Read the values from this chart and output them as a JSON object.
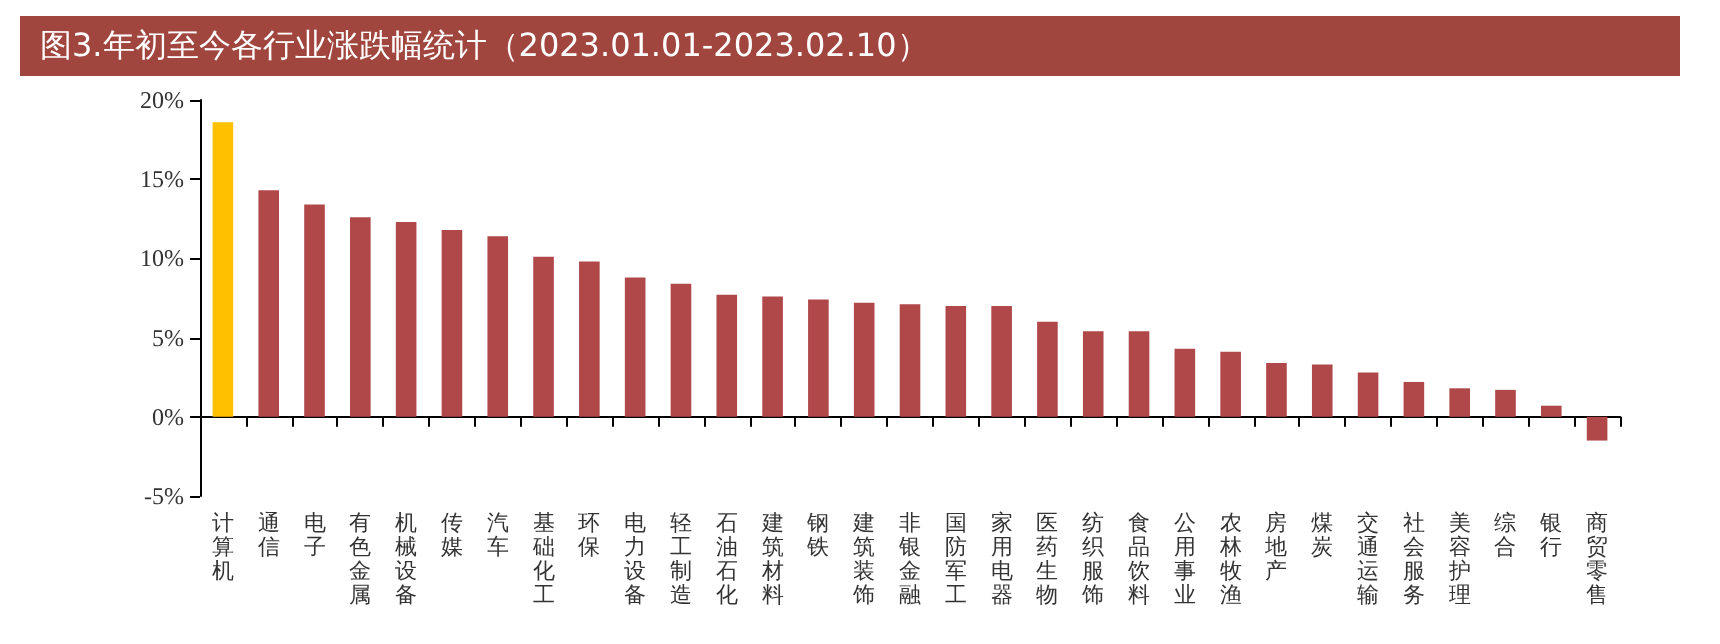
{
  "chart_data": {
    "type": "bar",
    "title": "图3.年初至今各行业涨跌幅统计（2023.01.01-2023.02.10）",
    "categories": [
      "计算机",
      "通信",
      "电子",
      "有色金属",
      "机械设备",
      "传媒",
      "汽车",
      "基础化工",
      "环保",
      "电力设备",
      "轻工制造",
      "石油石化",
      "建筑材料",
      "钢铁",
      "建筑装饰",
      "非银金融",
      "国防军工",
      "家用电器",
      "医药生物",
      "纺织服饰",
      "食品饮料",
      "公用事业",
      "农林牧渔",
      "房地产",
      "煤炭",
      "交通运输",
      "社会服务",
      "美容护理",
      "综合",
      "银行",
      "商贸零售"
    ],
    "values": [
      18.6,
      14.3,
      13.4,
      12.6,
      12.3,
      11.8,
      11.4,
      10.1,
      9.8,
      8.8,
      8.4,
      7.7,
      7.6,
      7.4,
      7.2,
      7.1,
      7.0,
      7.0,
      6.0,
      5.4,
      5.4,
      4.3,
      4.1,
      3.4,
      3.3,
      2.8,
      2.2,
      1.8,
      1.7,
      0.7,
      -1.5
    ],
    "colors": [
      "#ffc000",
      "#b0484a",
      "#b0484a",
      "#b0484a",
      "#b0484a",
      "#b0484a",
      "#b0484a",
      "#b0484a",
      "#b0484a",
      "#b0484a",
      "#b0484a",
      "#b0484a",
      "#b0484a",
      "#b0484a",
      "#b0484a",
      "#b0484a",
      "#b0484a",
      "#b0484a",
      "#b0484a",
      "#b0484a",
      "#b0484a",
      "#b0484a",
      "#b0484a",
      "#b0484a",
      "#b0484a",
      "#b0484a",
      "#b0484a",
      "#b0484a",
      "#b0484a",
      "#b0484a",
      "#b0484a"
    ],
    "ylim": [
      -5,
      20
    ],
    "yticks": [
      {
        "value": -5,
        "label": "-5%"
      },
      {
        "value": 0,
        "label": "0%"
      },
      {
        "value": 5,
        "label": "5%"
      },
      {
        "value": 10,
        "label": "10%"
      },
      {
        "value": 15,
        "label": "15%"
      },
      {
        "value": 20,
        "label": "20%"
      }
    ],
    "data_labels": false
  }
}
